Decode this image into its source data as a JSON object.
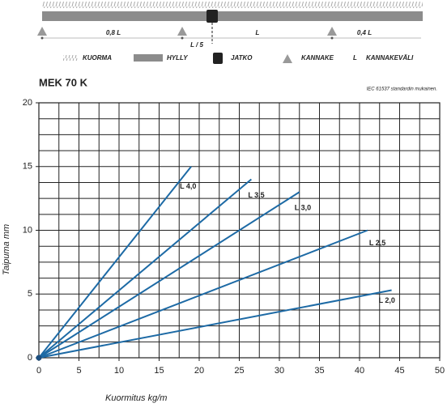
{
  "diagram": {
    "dimensions": [
      "0,8 L",
      "L / 5",
      "L",
      "0,4 L"
    ],
    "legend": [
      "KUORMA",
      "HYLLY",
      "JATKO",
      "KANNAKE",
      "L",
      "KANNAKEVÄLI"
    ]
  },
  "chart_data": {
    "type": "line",
    "title": "MEK 70 K",
    "note": "IEC 61537 standardin mukainen.",
    "xlabel": "Kuormitus kg/m",
    "ylabel": "Taipuma mm",
    "xlim": [
      0,
      50
    ],
    "ylim": [
      0,
      20
    ],
    "xticks": [
      0,
      5,
      10,
      15,
      20,
      25,
      30,
      35,
      40,
      45,
      50
    ],
    "yticks": [
      0,
      5,
      10,
      15,
      20
    ],
    "xgrid": [
      2.5,
      5,
      7.5,
      10,
      12.5,
      15,
      17.5,
      20,
      22.5,
      25,
      27.5,
      30,
      32.5,
      35,
      37.5,
      40,
      42.5,
      45,
      47.5
    ],
    "ygrid": [
      1.25,
      2.5,
      3.75,
      5,
      6.25,
      7.5,
      8.75,
      10,
      11.25,
      12.5,
      13.75,
      15,
      16.25,
      17.5,
      18.75
    ],
    "grid": true,
    "series": [
      {
        "name": "L 4,0",
        "color": "#1d6aa5",
        "x": [
          0,
          19
        ],
        "values": [
          0,
          15
        ]
      },
      {
        "name": "L 3,5",
        "color": "#1d6aa5",
        "x": [
          0,
          26.5
        ],
        "values": [
          0,
          14
        ]
      },
      {
        "name": "L 3,0",
        "color": "#1d6aa5",
        "x": [
          0,
          32.5
        ],
        "values": [
          0,
          13
        ]
      },
      {
        "name": "L 2,5",
        "color": "#1d6aa5",
        "x": [
          0,
          41
        ],
        "values": [
          0,
          10
        ]
      },
      {
        "name": "L 2,0",
        "color": "#1d6aa5",
        "x": [
          0,
          44
        ],
        "values": [
          0,
          5.3
        ]
      }
    ]
  }
}
